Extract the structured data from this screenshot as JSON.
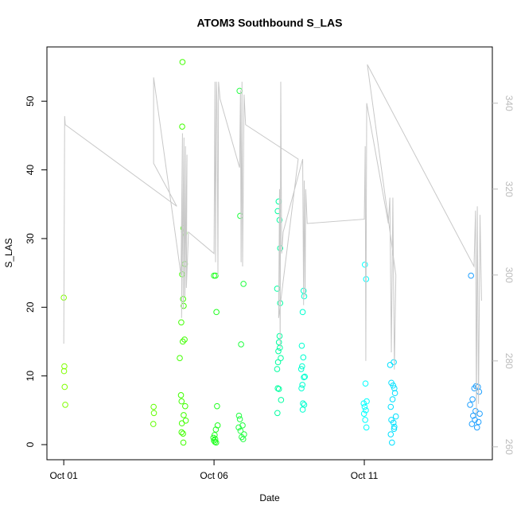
{
  "chart_data": {
    "type": "scatter",
    "title": "ATOM3 Southbound S_LAS",
    "x_label": "Date",
    "y_label": "S_LAS",
    "xlim": [
      -0.56,
      14.26
    ],
    "ylim": [
      -2.2,
      57.9
    ],
    "y2lim": [
      257,
      353.1
    ],
    "xticks": [
      {
        "value": 0,
        "label": "Oct 01"
      },
      {
        "value": 5,
        "label": "Oct 06"
      },
      {
        "value": 10,
        "label": "Oct 11"
      }
    ],
    "yticks": [
      0,
      10,
      20,
      30,
      40,
      50
    ],
    "y2ticks": [
      260,
      280,
      300,
      320,
      340
    ],
    "series": [
      {
        "color": "#80ff00",
        "x": [
          0,
          0.02,
          0.01,
          0.03,
          0.05
        ],
        "values": [
          21.4,
          11.4,
          10.7,
          8.4,
          5.8
        ]
      },
      {
        "color": "#60ff00",
        "x": [
          2.99,
          3.0,
          2.98
        ],
        "values": [
          5.5,
          4.6,
          3.0
        ]
      },
      {
        "color": "#40ff00",
        "x": [
          3.95,
          3.94,
          3.98,
          4.0,
          4.01,
          4.03,
          3.94,
          3.97,
          3.99,
          3.91,
          4.02,
          3.96,
          3.86,
          3.9,
          3.92,
          4.04,
          3.99,
          4.06,
          3.93,
          3.92,
          3.97,
          3.98
        ],
        "values": [
          55.7,
          46.3,
          31.5,
          31.0,
          30.8,
          26.3,
          24.8,
          21.2,
          20.2,
          17.8,
          15.3,
          15.0,
          12.6,
          7.2,
          6.3,
          5.6,
          4.3,
          3.5,
          3.1,
          1.8,
          1.6,
          0.3
        ]
      },
      {
        "color": "#20ff20",
        "x": [
          5.0,
          5.05,
          5.08,
          5.1,
          5.12,
          5.06,
          5.02,
          4.98,
          5.04,
          5.0,
          5.03,
          5.07
        ],
        "values": [
          24.6,
          24.6,
          19.3,
          5.6,
          2.8,
          2.2,
          1.4,
          1.0,
          0.8,
          0.6,
          0.4,
          0.3
        ]
      },
      {
        "color": "#20ff40",
        "x": [
          5.85,
          5.87,
          5.98,
          5.9,
          5.83,
          5.86,
          5.95,
          5.82,
          5.88,
          6.0,
          5.92,
          5.97
        ],
        "values": [
          51.5,
          33.3,
          23.4,
          14.6,
          4.2,
          3.7,
          2.8,
          2.5,
          2.0,
          1.5,
          1.1,
          0.8
        ]
      },
      {
        "color": "#00ffa0",
        "x": [
          7.15,
          7.12,
          7.18,
          7.2,
          7.1,
          7.2,
          7.18,
          7.16,
          7.19,
          7.14,
          7.22,
          7.13,
          7.1,
          7.12,
          7.16,
          7.23,
          7.11
        ],
        "values": [
          35.4,
          34.0,
          32.7,
          28.6,
          22.7,
          20.6,
          15.8,
          14.9,
          14.1,
          13.6,
          12.6,
          12.0,
          11.0,
          8.2,
          8.1,
          6.5,
          4.6
        ]
      },
      {
        "color": "#00ffd0",
        "x": [
          7.98,
          8.0,
          7.95,
          7.92,
          7.97,
          7.93,
          7.9,
          8.02,
          7.99,
          7.94,
          7.91,
          7.96,
          8.0,
          7.95
        ],
        "values": [
          22.4,
          21.6,
          19.3,
          14.4,
          12.7,
          11.4,
          11.0,
          9.9,
          9.8,
          8.7,
          8.2,
          6.0,
          5.8,
          5.1
        ]
      },
      {
        "color": "#00ffff",
        "x": [
          10.02,
          10.06,
          10.04,
          10.08,
          9.98,
          10.01,
          10.05,
          9.99,
          10.03,
          10.07
        ],
        "values": [
          26.2,
          24.1,
          8.9,
          6.3,
          6.0,
          5.5,
          5.0,
          4.5,
          3.6,
          2.5
        ]
      },
      {
        "color": "#00e0ff",
        "x": [
          10.98,
          10.86,
          10.9,
          10.96,
          11.0,
          11.02,
          10.94,
          10.88,
          11.05,
          10.9,
          10.97,
          11.0,
          10.99,
          10.88,
          10.92
        ],
        "values": [
          12.0,
          11.6,
          9.0,
          8.6,
          8.2,
          7.5,
          6.6,
          5.5,
          4.1,
          3.6,
          3.2,
          2.6,
          2.3,
          1.5,
          0.3
        ]
      },
      {
        "color": "#20a0ff",
        "x": [
          13.55,
          13.72,
          13.78,
          13.66,
          13.82,
          13.6,
          13.52,
          13.7,
          13.84,
          13.62,
          13.68,
          13.8,
          13.58,
          13.75
        ],
        "values": [
          24.6,
          8.5,
          8.4,
          8.2,
          7.7,
          6.6,
          5.8,
          4.9,
          4.5,
          4.2,
          3.6,
          3.3,
          3.0,
          2.5
        ]
      },
      {
        "type": "line",
        "axis": "y2",
        "color": "#c8c8c8",
        "x": [
          0,
          0.03,
          0.05,
          3.76,
          2.99,
          2.99,
          3.9,
          3.95,
          3.92,
          4.0,
          3.98,
          4.05,
          4.03,
          4.1,
          4.08,
          4.15,
          5.0,
          5.03,
          5.05,
          5.08,
          5.1,
          5.13,
          5.15,
          5.2,
          5.85,
          5.88,
          5.9,
          5.93,
          5.95,
          6.0,
          6.05,
          7.8,
          7.15,
          7.18,
          7.2,
          7.22,
          7.25,
          7.3,
          7.95,
          7.98,
          8.0,
          8.03,
          8.05,
          8.1,
          10.0,
          10.03,
          10.05,
          10.08,
          10.8,
          10.85,
          10.9,
          10.95,
          11.0,
          11.05,
          10.1,
          13.65,
          13.7,
          13.73,
          13.76,
          13.8,
          13.85,
          13.9
        ],
        "values": [
          284,
          337,
          335,
          316,
          326,
          346,
          300,
          333,
          290,
          332,
          292,
          330,
          295,
          328,
          297,
          310,
          305,
          345,
          303,
          345,
          340,
          300,
          345,
          341,
          325,
          343,
          303,
          345,
          302,
          342,
          335,
          327,
          290,
          320,
          283,
          345,
          305,
          310,
          327,
          293,
          322,
          295,
          320,
          312,
          313,
          330,
          280,
          340,
          312,
          318,
          282,
          318,
          278,
          300,
          349,
          302,
          315,
          267,
          316,
          270,
          314,
          294
        ]
      }
    ]
  }
}
